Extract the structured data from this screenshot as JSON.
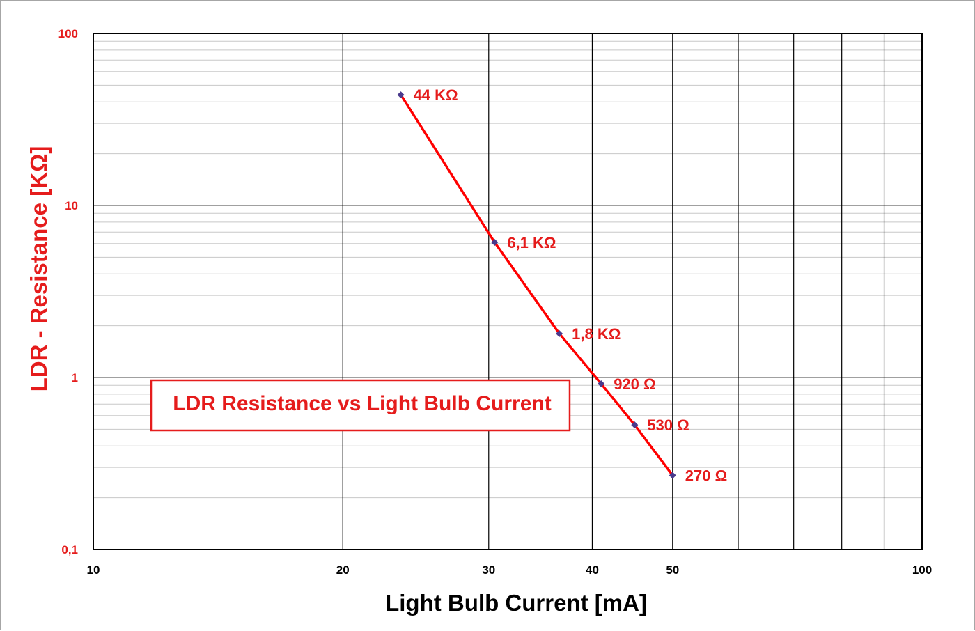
{
  "chart_data": {
    "type": "line",
    "title": "LDR Resistance vs Light Bulb Current",
    "xlabel": "Light Bulb Current [mA]",
    "ylabel": "LDR - Resistance [KΩ]",
    "xscale": "log",
    "yscale": "log",
    "xlim": [
      10,
      100
    ],
    "ylim": [
      0.1,
      100
    ],
    "x_tick_labels": [
      "10",
      "20",
      "30",
      "40",
      "50",
      "100"
    ],
    "x_tick_values": [
      10,
      20,
      30,
      40,
      50,
      100
    ],
    "y_tick_labels": [
      "0,1",
      "1",
      "10",
      "100"
    ],
    "y_tick_values": [
      0.1,
      1,
      10,
      100
    ],
    "grid": true,
    "legend": "none",
    "title_placement": "boxed, inside plot lower-left",
    "series": [
      {
        "x": [
          23.5,
          30.5,
          36.5,
          41,
          45,
          50
        ],
        "y": [
          44,
          6.1,
          1.8,
          0.92,
          0.53,
          0.27
        ],
        "labels": [
          "44 KΩ",
          "6,1 KΩ",
          "1,8 KΩ",
          "920 Ω",
          "530 Ω",
          "270 Ω"
        ]
      }
    ],
    "colors": {
      "line": "#ff0000",
      "marker": "#4a3a8c",
      "labels": "#e51c1c",
      "title_border": "#e51c1c",
      "grid_major": "#000000",
      "grid_minor": "#c8c8c8"
    }
  }
}
